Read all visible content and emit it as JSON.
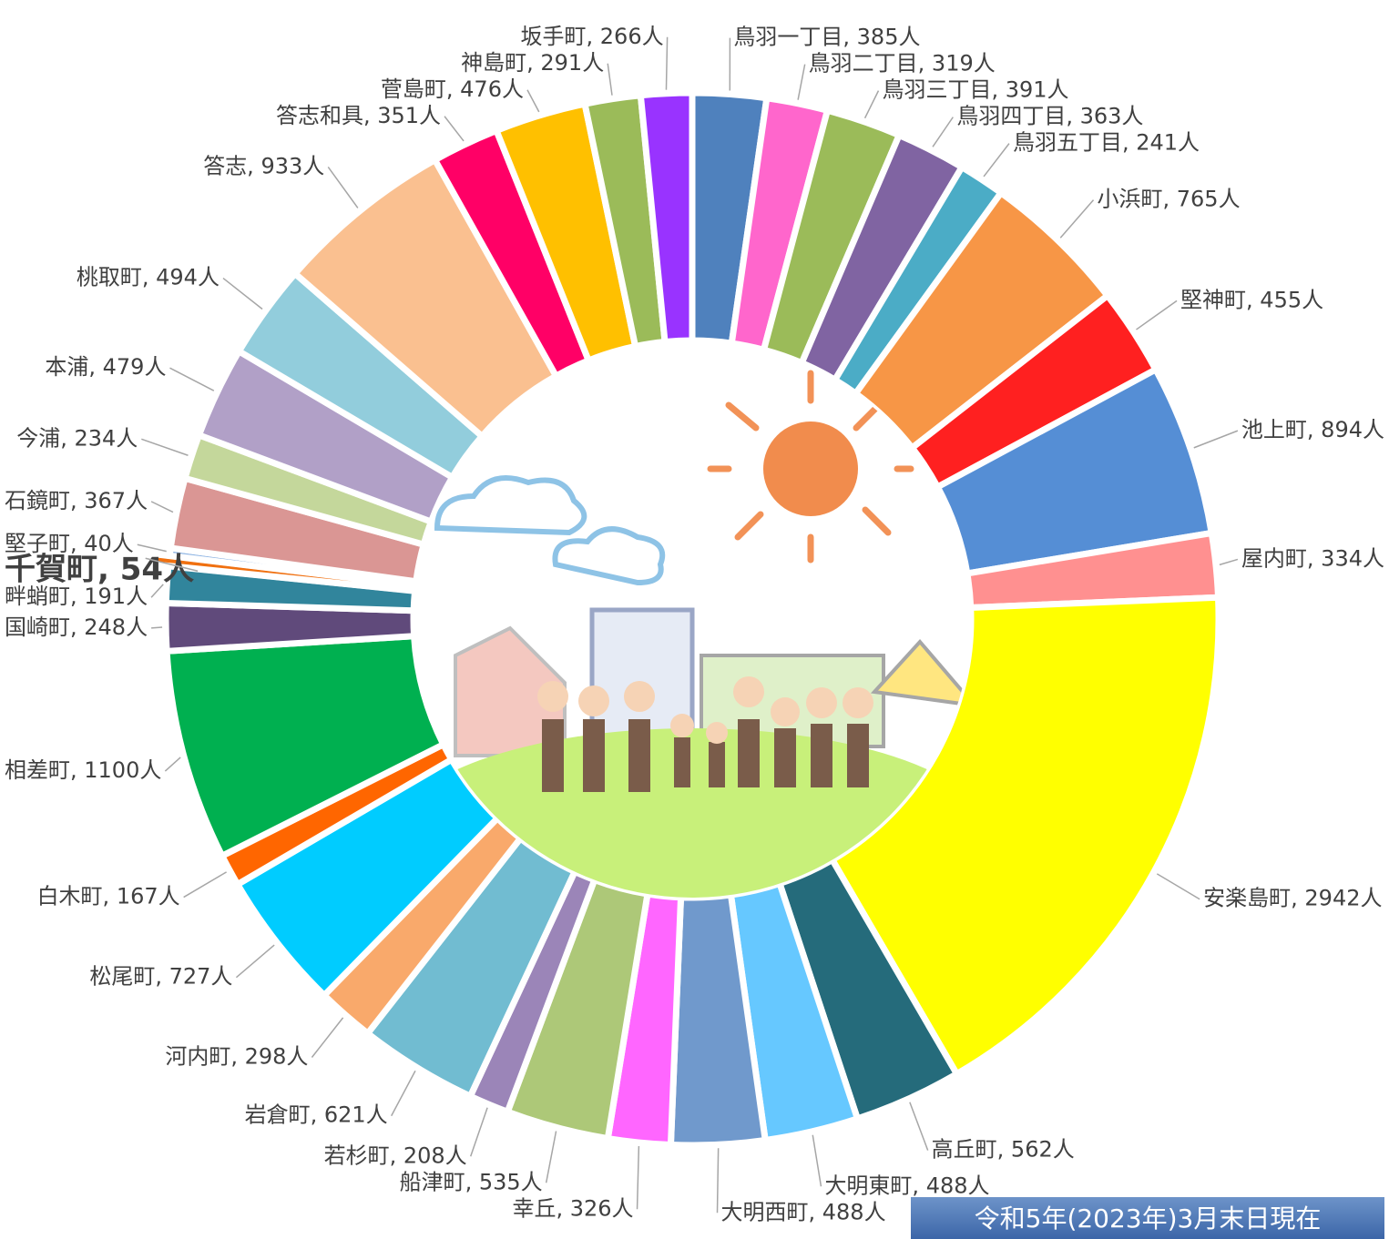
{
  "chart_data": {
    "type": "donut",
    "value_labels": [
      "鳥羽一丁目, 385人",
      "鳥羽二丁目, 319人",
      "鳥羽三丁目, 391人",
      "鳥羽四丁目, 363人",
      "鳥羽五丁目, 241人",
      "小浜町, 765人",
      "堅神町, 455人",
      "池上町, 894人",
      "屋内町, 334人",
      "安楽島町, 2942人",
      "高丘町, 562人",
      "大明東町, 488人",
      "大明西町, 488人",
      "幸丘, 326人",
      "船津町, 535人",
      "若杉町, 208人",
      "岩倉町, 621人",
      "河内町, 298人",
      "松尾町, 727人",
      "白木町, 167人",
      "相差町, 1100人",
      "国崎町, 248人",
      "畔蛸町, 191人",
      "千賀町, 54人",
      "堅子町, 40人",
      "石鏡町, 367人",
      "今浦, 234人",
      "本浦, 479人",
      "桃取町, 494人",
      "答志, 933人",
      "答志和具, 351人",
      "菅島町, 476人",
      "神島町, 291人",
      "坂手町, 266人"
    ],
    "values": [
      385,
      319,
      391,
      363,
      241,
      765,
      455,
      894,
      334,
      2942,
      562,
      488,
      488,
      326,
      535,
      208,
      621,
      298,
      727,
      167,
      1100,
      248,
      191,
      54,
      40,
      367,
      234,
      479,
      494,
      933,
      351,
      476,
      291,
      266
    ],
    "colors": [
      "#4f81bd",
      "#ff66cc",
      "#9bbb59",
      "#8064a2",
      "#4bacc6",
      "#f79646",
      "#ff2020",
      "#558ed5",
      "#ff9090",
      "#ffff00",
      "#256b7b",
      "#66c8ff",
      "#7099cc",
      "#ff66ff",
      "#adc878",
      "#9b85b8",
      "#71bcd1",
      "#f9a96b",
      "#00ccff",
      "#ff6600",
      "#00b050",
      "#604a7b",
      "#31859c",
      "#f07010",
      "#8eb4e3",
      "#da9694",
      "#c4d79b",
      "#b1a0c7",
      "#92cddc",
      "#fac090",
      "#ff0066",
      "#ffc000",
      "#9bbb59",
      "#9933ff"
    ],
    "highlight": 23,
    "note": "令和5年(2023年)3月末日現在"
  }
}
